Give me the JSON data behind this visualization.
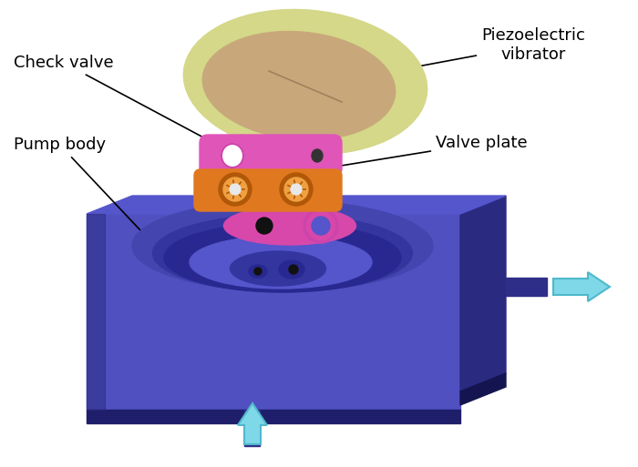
{
  "labels": {
    "check_valve": "Check valve",
    "pump_body": "Pump body",
    "piezoelectric": "Piezoelectric\nvibrator",
    "valve_plate": "Valve plate"
  },
  "colors": {
    "background": "#ffffff",
    "pump_top_face": "#5555cc",
    "pump_front_face": "#5050c0",
    "pump_right_face": "#2a2a80",
    "pump_base_front": "#1e1e6a",
    "pump_base_right": "#141450",
    "pump_cavity1": "#4545b0",
    "pump_cavity2": "#3535a0",
    "pump_cavity3": "#282890",
    "pump_cavity_inner": "#202080",
    "piezo_outer": "#d4d888",
    "piezo_inner": "#c8a87a",
    "piezo_line": "#907050",
    "pink": "#e055b8",
    "orange": "#e07820",
    "orange_dark": "#b05808",
    "orange_light": "#f0a040",
    "pipe_color": "#2e2e88",
    "arrow_fill": "#7fd8e8",
    "arrow_edge": "#50b8cc",
    "text_color": "#000000",
    "annot_line": "#000000",
    "white": "#ffffff",
    "dark_dot": "#111111",
    "valve_on_body_pink": "#d848aa",
    "valve_on_body_outline": "#cc44aa"
  },
  "font_size": 13
}
